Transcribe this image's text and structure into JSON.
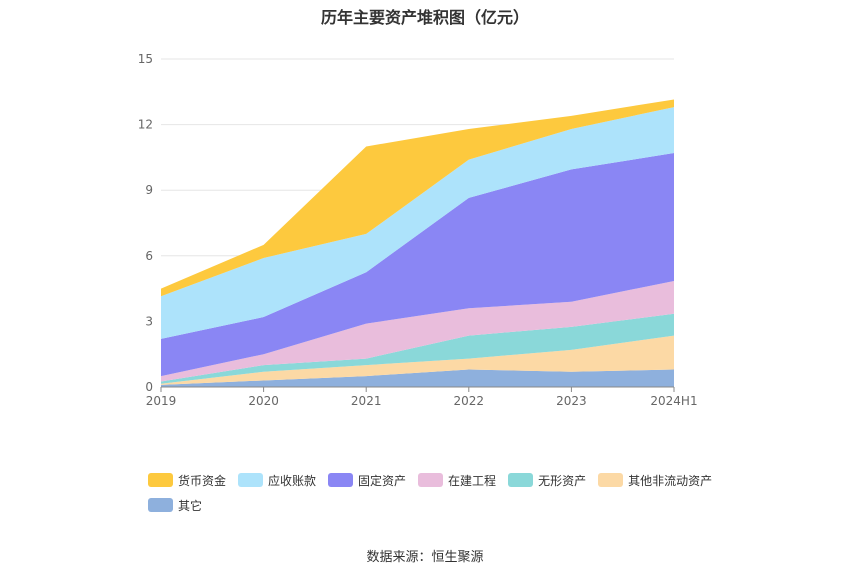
{
  "title": "历年主要资产堆积图（亿元）",
  "source": "数据来源：恒生聚源",
  "chart_data": {
    "type": "area",
    "stacked": true,
    "categories": [
      "2019",
      "2020",
      "2021",
      "2022",
      "2023",
      "2024H1"
    ],
    "ylim": [
      0,
      15
    ],
    "yticks": [
      "0",
      "3",
      "6",
      "9",
      "12",
      "15"
    ],
    "grid": true,
    "legend_position": "bottom",
    "series": [
      {
        "name": "其它",
        "color": "#8eb0dd",
        "values": [
          0.1,
          0.3,
          0.5,
          0.8,
          0.7,
          0.8
        ]
      },
      {
        "name": "其他非流动资产",
        "color": "#fcd9a5",
        "values": [
          0.05,
          0.4,
          0.5,
          0.5,
          1.0,
          1.55
        ]
      },
      {
        "name": "无形资产",
        "color": "#8ad8d9",
        "values": [
          0.1,
          0.3,
          0.3,
          1.05,
          1.05,
          1.0
        ]
      },
      {
        "name": "在建工程",
        "color": "#e9bddc",
        "values": [
          0.25,
          0.5,
          1.6,
          1.25,
          1.15,
          1.5
        ]
      },
      {
        "name": "固定资产",
        "color": "#8a86f4",
        "values": [
          1.7,
          1.7,
          2.35,
          5.05,
          6.05,
          5.85
        ]
      },
      {
        "name": "应收账款",
        "color": "#ade3fb",
        "values": [
          1.95,
          2.7,
          1.75,
          1.75,
          1.85,
          2.1
        ]
      },
      {
        "name": "货币资金",
        "color": "#fdc93e",
        "values": [
          0.35,
          0.6,
          4.0,
          1.4,
          0.6,
          0.35
        ]
      }
    ],
    "legend_order": [
      "货币资金",
      "应收账款",
      "固定资产",
      "在建工程",
      "无形资产",
      "其他非流动资产",
      "其它"
    ]
  }
}
